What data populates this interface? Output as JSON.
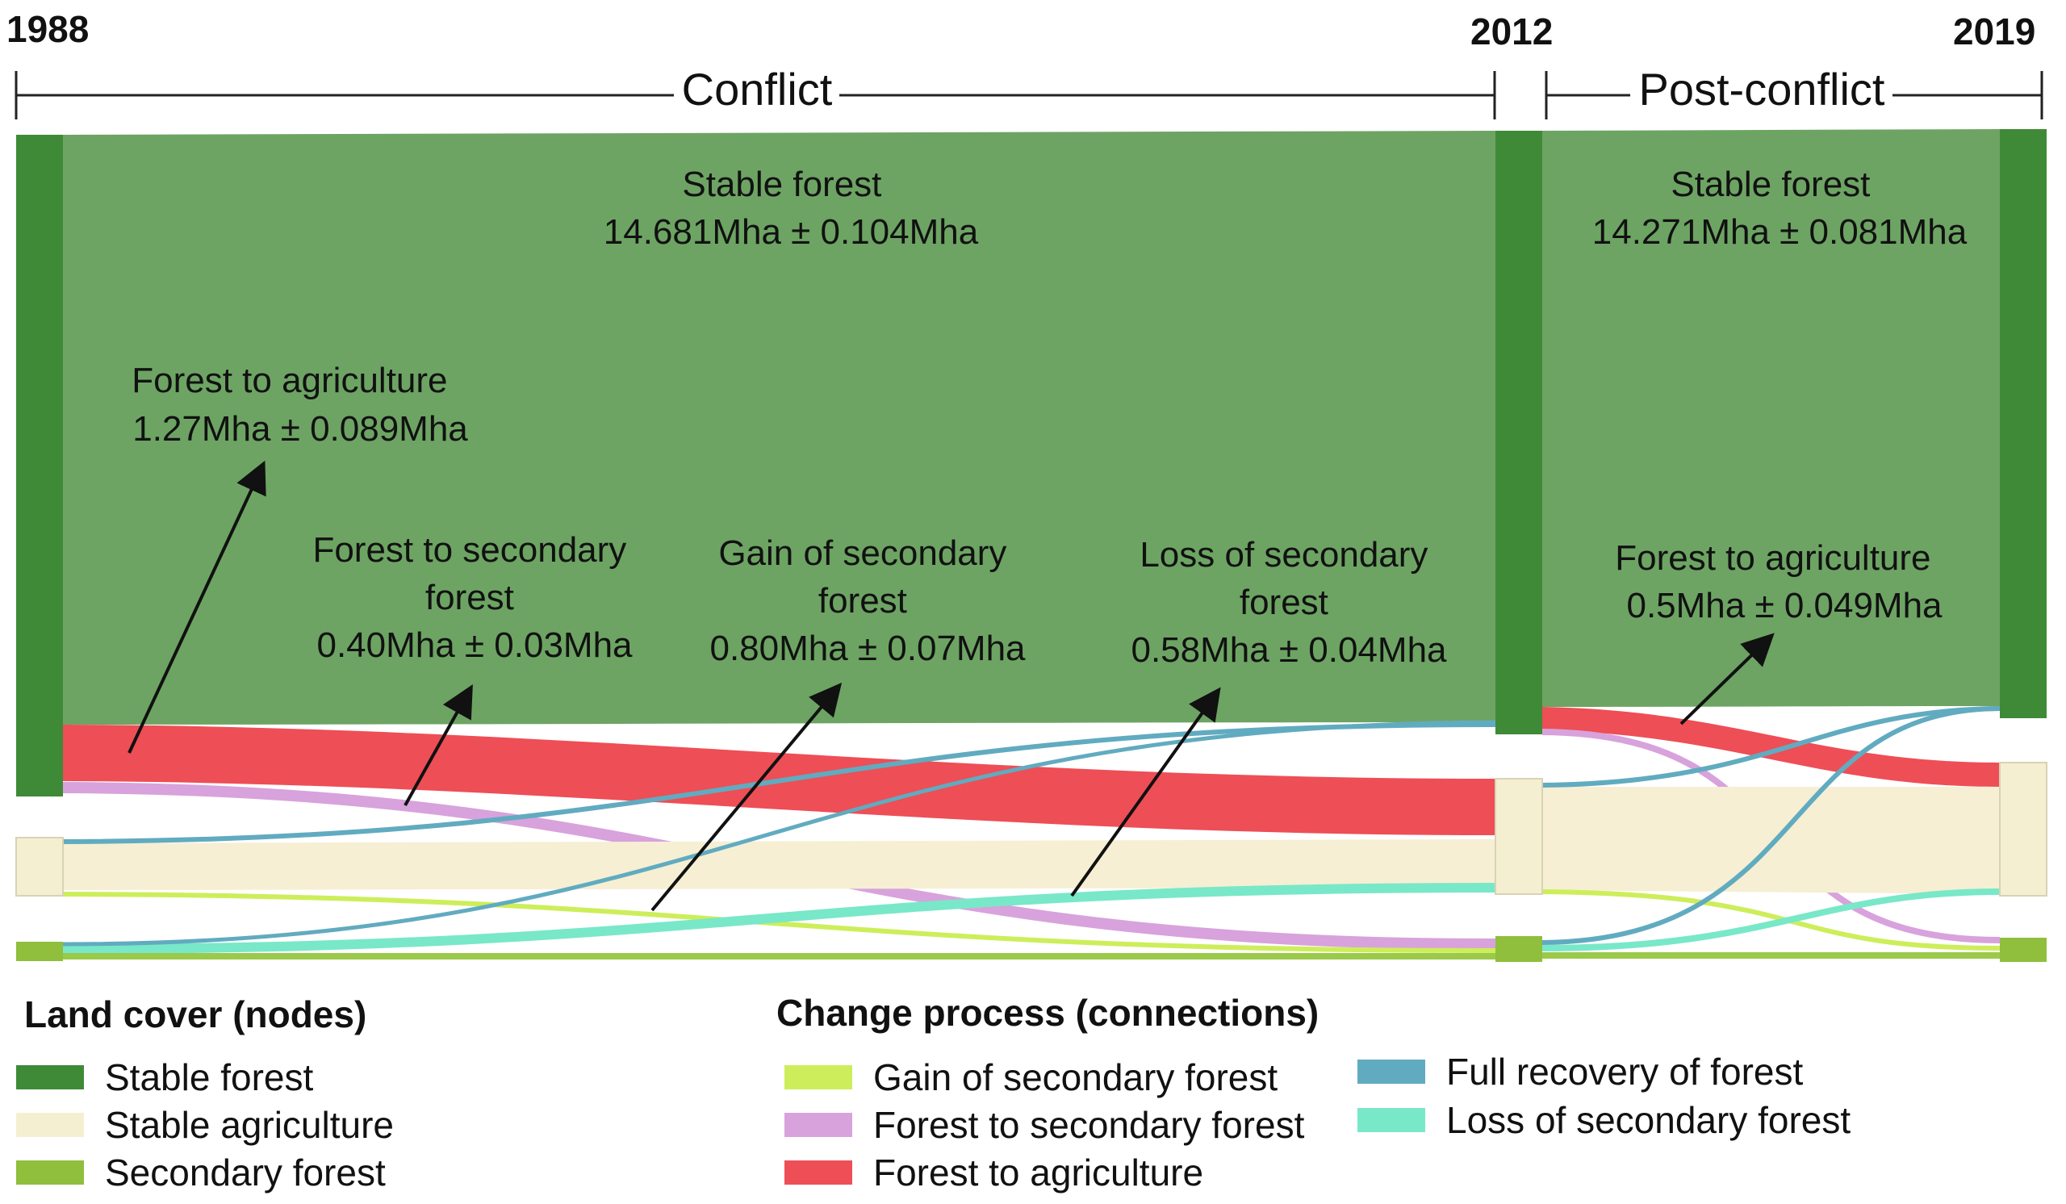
{
  "timeline": {
    "years": [
      "1988",
      "2012",
      "2019"
    ],
    "periods": [
      "Conflict",
      "Post-conflict"
    ]
  },
  "annotations": [
    {
      "lines": [
        "Stable forest",
        "14.681Mha ± 0.104Mha"
      ]
    },
    {
      "lines": [
        "Stable forest",
        "14.271Mha ± 0.081Mha"
      ]
    },
    {
      "lines": [
        "Forest to agriculture",
        "1.27Mha ± 0.089Mha"
      ]
    },
    {
      "lines": [
        "Forest to secondary",
        "forest",
        "0.40Mha ± 0.03Mha"
      ]
    },
    {
      "lines": [
        "Gain of secondary",
        "forest",
        "0.80Mha ± 0.07Mha"
      ]
    },
    {
      "lines": [
        "Loss of secondary",
        "forest",
        "0.58Mha ± 0.04Mha"
      ]
    },
    {
      "lines": [
        "Forest to agriculture",
        "0.5Mha ± 0.049Mha"
      ]
    }
  ],
  "legend": {
    "nodes_title": "Land cover (nodes)",
    "nodes": [
      {
        "label": "Stable forest",
        "color": "#3f8a37"
      },
      {
        "label": "Stable agriculture",
        "color": "#f5efd2"
      },
      {
        "label": "Secondary forest",
        "color": "#8fbf3c"
      }
    ],
    "connections_title": "Change process (connections)",
    "connections": [
      {
        "label": "Gain of secondary forest",
        "color": "#cdee5a"
      },
      {
        "label": "Forest to secondary forest",
        "color": "#d8a2dc"
      },
      {
        "label": "Forest to agriculture",
        "color": "#ee4e56"
      },
      {
        "label": "Full recovery of forest",
        "color": "#61abc0"
      },
      {
        "label": "Loss of secondary forest",
        "color": "#78e8c8"
      }
    ]
  },
  "colors": {
    "stable_forest_flow": "#6da463",
    "agriculture_flow": "#f6efd3"
  }
}
